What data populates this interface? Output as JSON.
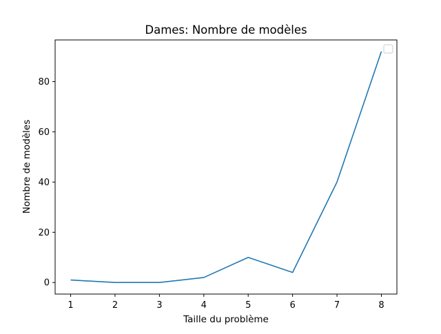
{
  "chart_data": {
    "type": "line",
    "title": "Dames: Nombre de modèles",
    "xlabel": "Taille du problème",
    "ylabel": "Nombre de modèles",
    "x": [
      1,
      2,
      3,
      4,
      5,
      6,
      7,
      8
    ],
    "series": [
      {
        "values": [
          1,
          0,
          0,
          2,
          10,
          4,
          40,
          92
        ],
        "color": "#1f77b4"
      }
    ],
    "xticks": [
      "1",
      "2",
      "3",
      "4",
      "5",
      "6",
      "7",
      "8"
    ],
    "yticks": [
      "0",
      "20",
      "40",
      "60",
      "80"
    ],
    "xlim": [
      0.65,
      8.35
    ],
    "ylim": [
      -4.6,
      96.6
    ],
    "grid": false,
    "legend": {
      "placement": "top-right",
      "entries": []
    }
  }
}
